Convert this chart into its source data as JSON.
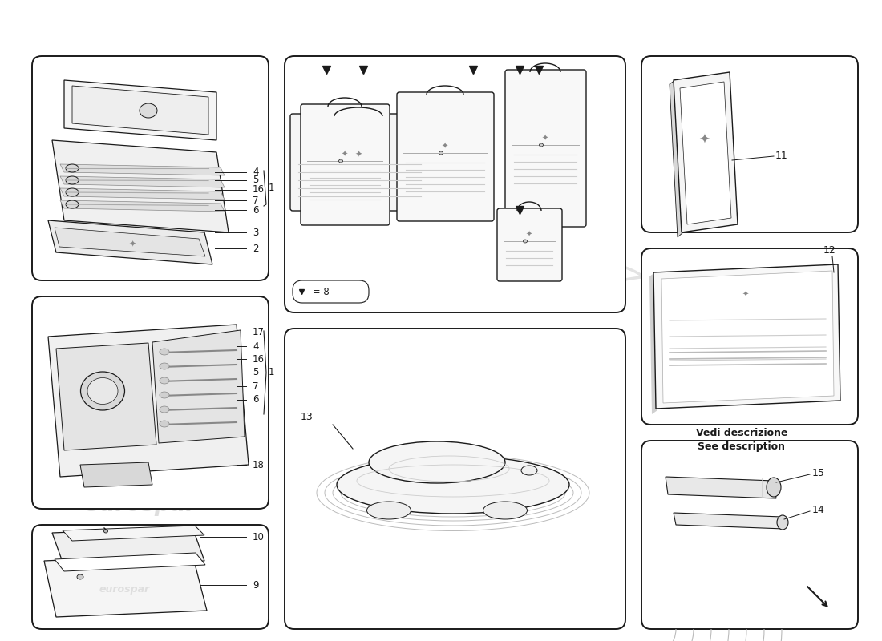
{
  "bg_color": "#ffffff",
  "lc": "#1a1a1a",
  "wc": "#c8c8c8",
  "panel_lw": 1.4,
  "vedi_line1": "Vedi descrizione",
  "vedi_line2": "See description",
  "arrow_legend": " = 8"
}
